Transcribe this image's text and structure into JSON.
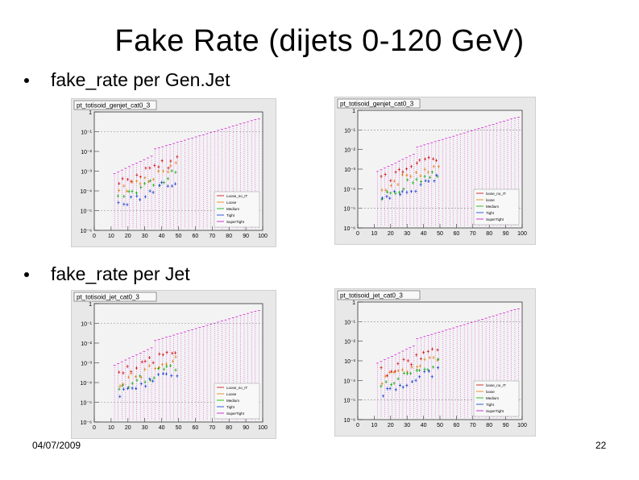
{
  "slide": {
    "title": "Fake Rate (dijets 0-120 GeV)",
    "date": "04/07/2009",
    "page_number": "22",
    "bullets": [
      {
        "text": "fake_rate per Gen.Jet"
      },
      {
        "text": "fake_rate per Jet"
      }
    ]
  },
  "plots": [
    {
      "title": "pt_totisoid_genjet_cat0_3",
      "y_ticks": [
        "1",
        "10⁻¹",
        "10⁻²",
        "10⁻³",
        "10⁻⁴",
        "10⁻⁵",
        "10⁻⁶"
      ],
      "x_ticks": [
        "0",
        "10",
        "20",
        "30",
        "40",
        "50",
        "60",
        "70",
        "80",
        "90",
        "100"
      ],
      "legend": [
        "Loose_no_IT",
        "Loose",
        "Medium",
        "Tight",
        "SuperTight"
      ]
    },
    {
      "title": "pt_totisoid_genjet_cat0_3",
      "y_ticks": [
        "1",
        "10⁻¹",
        "10⁻²",
        "10⁻³",
        "10⁻⁴",
        "10⁻⁵",
        "10⁻⁶"
      ],
      "x_ticks": [
        "0",
        "10",
        "20",
        "30",
        "40",
        "50",
        "60",
        "70",
        "80",
        "90",
        "100"
      ],
      "legend": [
        "loose_no_IT",
        "loose",
        "Medium",
        "Tight",
        "SuperTight"
      ]
    },
    {
      "title": "pt_totisoid_jet_cat0_3",
      "y_ticks": [
        "1",
        "10⁻¹",
        "10⁻²",
        "10⁻³",
        "10⁻⁴",
        "10⁻⁵",
        "10⁻⁶"
      ],
      "x_ticks": [
        "0",
        "10",
        "20",
        "30",
        "40",
        "50",
        "60",
        "70",
        "80",
        "90",
        "100"
      ],
      "legend": [
        "Loose_no_IT",
        "Loose",
        "Medium",
        "Tight",
        "SuperTight"
      ]
    },
    {
      "title": "pt_totisoid_jet_cat0_3",
      "y_ticks": [
        "1",
        "10⁻¹",
        "10⁻²",
        "10⁻³",
        "10⁻⁴",
        "10⁻⁵",
        "10⁻⁶"
      ],
      "x_ticks": [
        "0",
        "10",
        "20",
        "30",
        "40",
        "50",
        "60",
        "70",
        "80",
        "90",
        "100"
      ],
      "legend": [
        "loose_no_IT",
        "loose",
        "Medium",
        "Tight",
        "SuperTight"
      ]
    }
  ],
  "colors": {
    "series": [
      "#cc0000",
      "#e07a00",
      "#00aa00",
      "#0033cc",
      "#cc00cc"
    ]
  }
}
